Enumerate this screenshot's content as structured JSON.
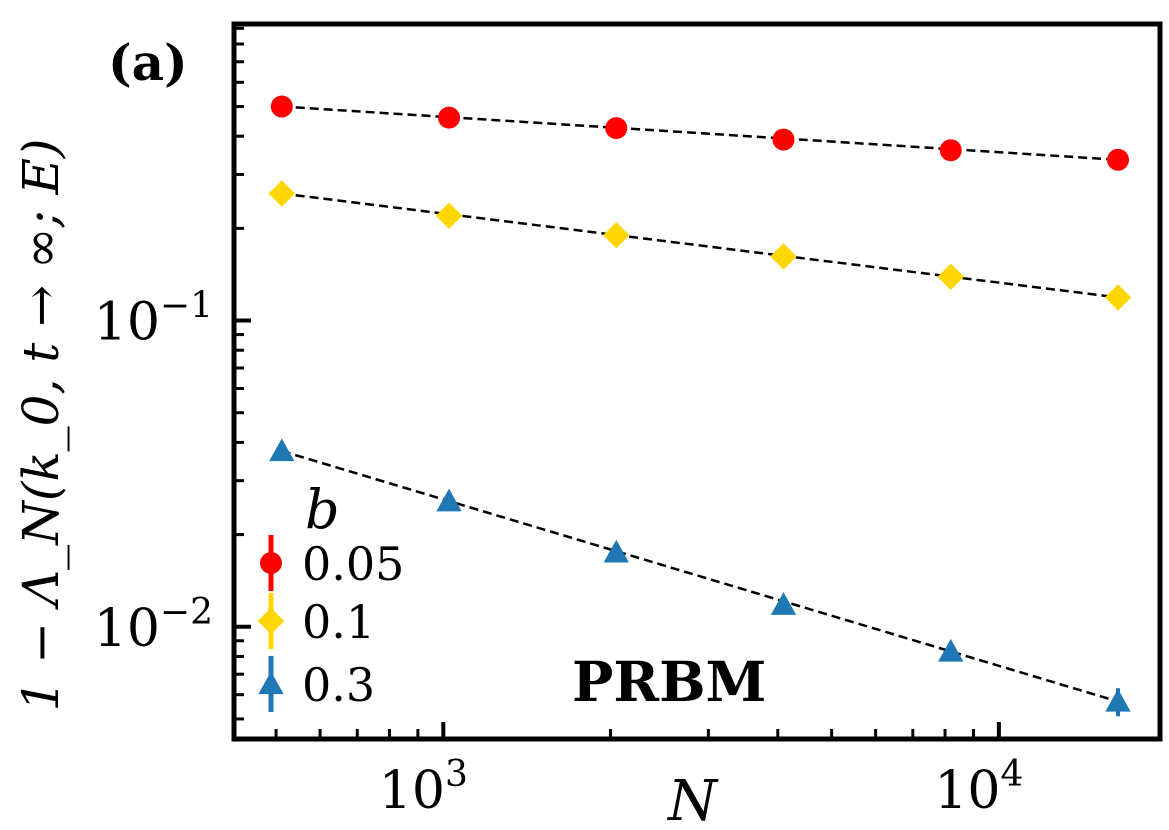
{
  "chart_data": {
    "type": "scatter",
    "panel_label": "(a)",
    "model_label": "PRBM",
    "xlabel": "N",
    "ylabel": "1 − Λ_N(k_0, t → ∞; E)",
    "xscale": "log",
    "yscale": "log",
    "xlim": [
      420,
      19500
    ],
    "ylim": [
      0.0043,
      0.93
    ],
    "x_major_ticks": [
      {
        "value": 1000,
        "base": "10",
        "exp": "3"
      },
      {
        "value": 10000,
        "base": "10",
        "exp": "4"
      }
    ],
    "y_major_ticks": [
      {
        "value": 0.01,
        "base": "10",
        "exp": "−2"
      },
      {
        "value": 0.1,
        "base": "10",
        "exp": "−1"
      }
    ],
    "legend": {
      "title": "b",
      "placement": "lower-left"
    },
    "series": [
      {
        "name": "0.05",
        "marker": "circle",
        "color": "#ff0000",
        "x": [
          512,
          1024,
          2048,
          4096,
          8192,
          16384
        ],
        "y": [
          0.5,
          0.46,
          0.425,
          0.39,
          0.36,
          0.335
        ],
        "err": [
          0,
          0,
          0,
          0,
          0,
          0
        ],
        "fit": {
          "x": [
            512,
            16384
          ],
          "y": [
            0.5,
            0.335
          ]
        }
      },
      {
        "name": "0.1",
        "marker": "diamond",
        "color": "#ffd700",
        "x": [
          512,
          1024,
          2048,
          4096,
          8192,
          16384
        ],
        "y": [
          0.26,
          0.22,
          0.19,
          0.162,
          0.139,
          0.119
        ],
        "err": [
          0,
          0,
          0,
          0,
          0,
          0
        ],
        "fit": {
          "x": [
            512,
            16384
          ],
          "y": [
            0.26,
            0.119
          ]
        }
      },
      {
        "name": "0.3",
        "marker": "triangle",
        "color": "#1f77b4",
        "x": [
          512,
          1024,
          2048,
          4096,
          8192,
          16384
        ],
        "y": [
          0.0375,
          0.0257,
          0.0175,
          0.0118,
          0.0083,
          0.0057
        ],
        "err": [
          0,
          0,
          0,
          0.0004,
          0.0005,
          0.0006
        ],
        "fit": {
          "x": [
            512,
            16384
          ],
          "y": [
            0.0375,
            0.0057
          ]
        }
      }
    ]
  }
}
